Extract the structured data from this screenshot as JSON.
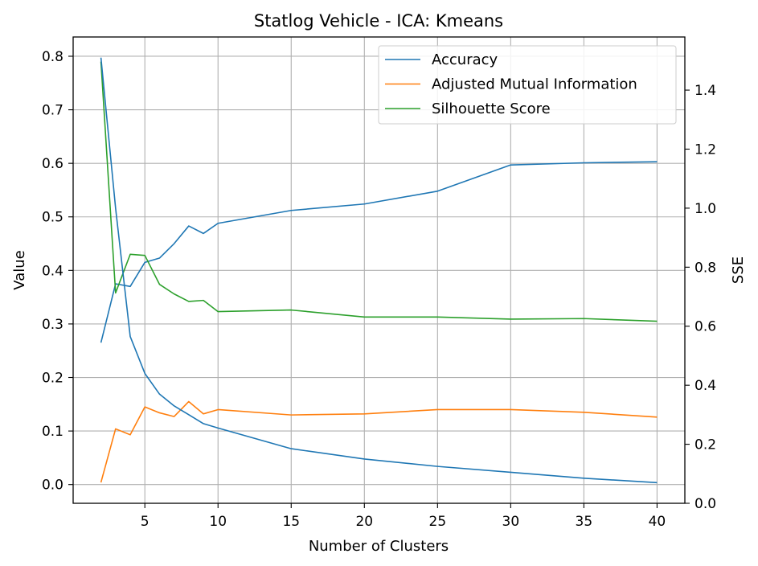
{
  "chart_data": {
    "type": "line",
    "title": "Statlog Vehicle - ICA: Kmeans",
    "xlabel": "Number of Clusters",
    "ylabel": "Value",
    "y2label": "SSE",
    "xlim": [
      0.1,
      41.9
    ],
    "ylim": [
      -0.035,
      0.836
    ],
    "y2lim": [
      0.0,
      1.58
    ],
    "xticks": [
      5,
      10,
      15,
      20,
      25,
      30,
      35,
      40
    ],
    "yticks": [
      0.0,
      0.1,
      0.2,
      0.3,
      0.4,
      0.5,
      0.6,
      0.7,
      0.8
    ],
    "y2ticks": [
      0.0,
      0.2,
      0.4,
      0.6,
      0.8,
      1.0,
      1.2,
      1.4
    ],
    "grid": true,
    "legend_position": "top-right",
    "x": [
      2,
      3,
      4,
      5,
      6,
      7,
      8,
      9,
      10,
      15,
      20,
      25,
      30,
      35,
      40
    ],
    "series": [
      {
        "name": "Accuracy",
        "axis": "left",
        "color": "#1f77b4",
        "legend": true,
        "values": [
          0.265,
          0.375,
          0.37,
          0.415,
          0.423,
          0.45,
          0.483,
          0.469,
          0.488,
          0.512,
          0.524,
          0.548,
          0.597,
          0.601,
          0.603
        ]
      },
      {
        "name": "Adjusted Mutual Information",
        "axis": "left",
        "color": "#ff7f0e",
        "legend": true,
        "values": [
          0.004,
          0.104,
          0.093,
          0.145,
          0.134,
          0.127,
          0.155,
          0.132,
          0.14,
          0.13,
          0.132,
          0.14,
          0.14,
          0.135,
          0.126
        ]
      },
      {
        "name": "Silhouette Score",
        "axis": "left",
        "color": "#2ca02c",
        "legend": true,
        "values": [
          0.79,
          0.358,
          0.43,
          0.428,
          0.374,
          0.356,
          0.342,
          0.344,
          0.323,
          0.326,
          0.313,
          0.313,
          0.309,
          0.31,
          0.305
        ]
      },
      {
        "name": "",
        "axis": "right",
        "color": "#1f77b4",
        "legend": false,
        "values": [
          1.51,
          1.0,
          0.565,
          0.44,
          0.37,
          0.33,
          0.3,
          0.27,
          0.255,
          0.185,
          0.15,
          0.125,
          0.105,
          0.085,
          0.07
        ]
      }
    ]
  }
}
